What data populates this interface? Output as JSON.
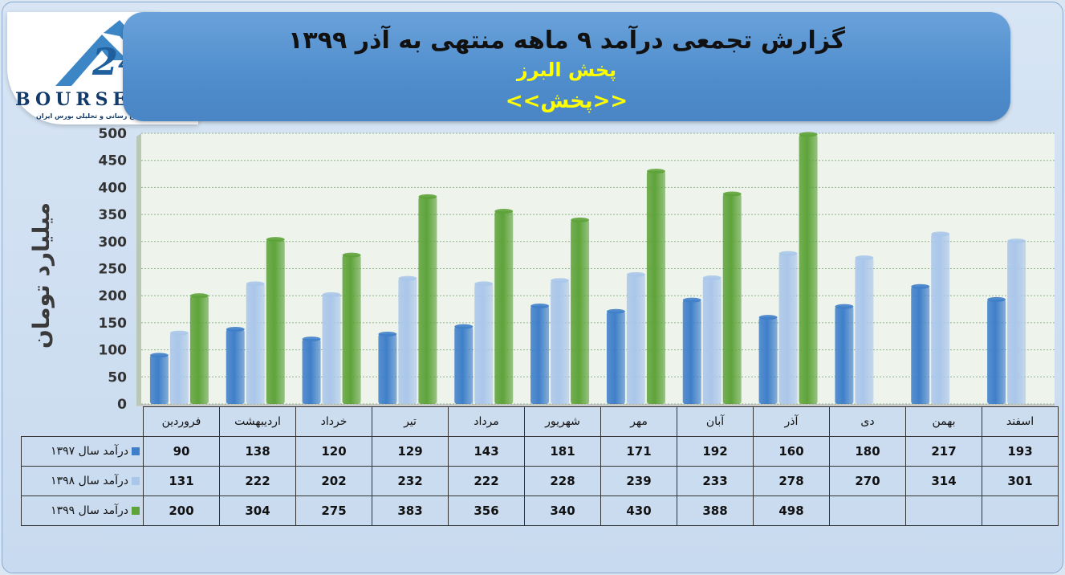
{
  "header": {
    "title": "گزارش تجمعی درآمد ۹ ماهه منتهی به آذر ۱۳۹۹",
    "subtitle": "پخش البرز",
    "tag": "<<پخش>>"
  },
  "logo": {
    "text": "BOURSE",
    "subtext": "پایگاه اطلاع رسانی و تحلیلی بورس ایران"
  },
  "colors": {
    "series_1397": "#3f7fc9",
    "series_1398": "#aac6ea",
    "series_1399": "#5ea33a"
  },
  "chart_data": {
    "type": "bar",
    "ylabel": "میلیارد تومان",
    "ylim": [
      0,
      500
    ],
    "yticks": [
      0,
      50,
      100,
      150,
      200,
      250,
      300,
      350,
      400,
      450,
      500
    ],
    "grid": true,
    "categories": [
      "فروردین",
      "اردیبهشت",
      "خرداد",
      "تیر",
      "مرداد",
      "شهریور",
      "مهر",
      "آبان",
      "آذر",
      "دی",
      "بهمن",
      "اسفند"
    ],
    "series": [
      {
        "name": "درآمد سال ۱۳۹۷",
        "values": [
          90,
          138,
          120,
          129,
          143,
          181,
          171,
          192,
          160,
          180,
          217,
          193
        ]
      },
      {
        "name": "درآمد سال ۱۳۹۸",
        "values": [
          131,
          222,
          202,
          232,
          222,
          228,
          239,
          233,
          278,
          270,
          314,
          301
        ]
      },
      {
        "name": "درآمد سال ۱۳۹۹",
        "values": [
          200,
          304,
          275,
          383,
          356,
          340,
          430,
          388,
          498,
          null,
          null,
          null
        ]
      }
    ]
  }
}
